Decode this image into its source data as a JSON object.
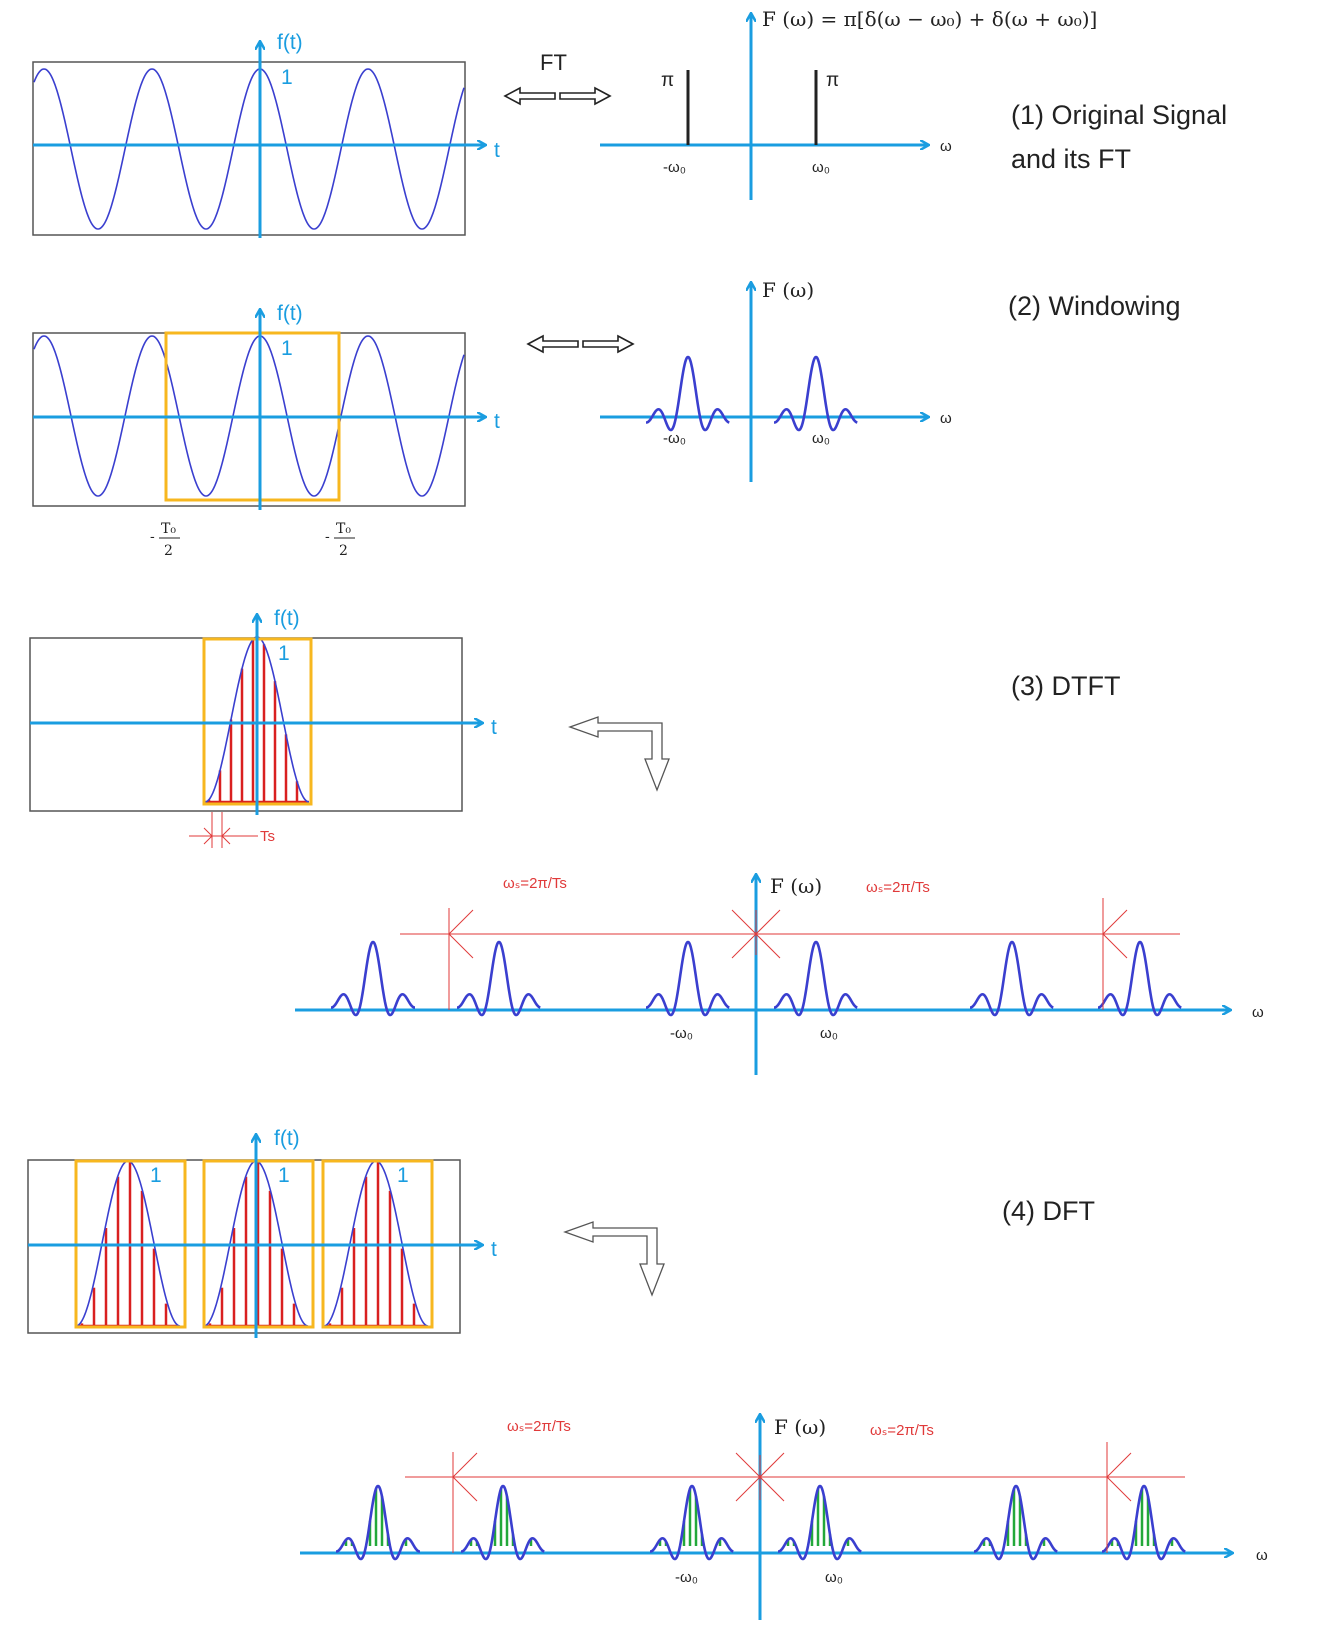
{
  "colors": {
    "axis": "#1a9de0",
    "curve": "#3a3fcf",
    "window": "#f7b71f",
    "sample": "#d92020",
    "dim": "#e03a3a",
    "spec_sample": "#23a83a",
    "text": "#222222"
  },
  "sections": {
    "s1": {
      "title_line1": "(1) Original Signal",
      "title_line2": "and its FT"
    },
    "s2": {
      "title": "(2) Windowing"
    },
    "s3": {
      "title": "(3) DTFT"
    },
    "s4": {
      "title": "(4) DFT"
    }
  },
  "labels": {
    "ft": "f(t)",
    "one": "1",
    "t": "t",
    "F": "F (ω)",
    "formula": "F (ω)  =  π[δ(ω − ω₀) + δ(ω + ω₀)]",
    "omega": "ω",
    "neg_w0": "-ω₀",
    "w0": "ω₀",
    "pi": "π",
    "FT": "FT",
    "T0": "T₀",
    "two": "2",
    "minus": "-",
    "Ts": "Ts",
    "ws": "ωₛ=2π/Ts"
  }
}
